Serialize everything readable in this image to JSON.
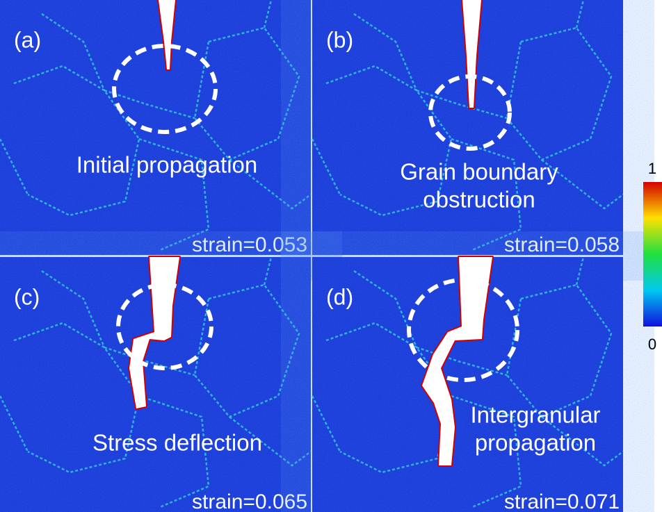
{
  "panels": [
    {
      "label": "(a)",
      "caption": [
        "Initial propagation"
      ],
      "strain": "strain=0.053"
    },
    {
      "label": "(b)",
      "caption": [
        "Grain boundary",
        "obstruction"
      ],
      "strain": "strain=0.058"
    },
    {
      "label": "(c)",
      "caption": [
        "Stress deflection"
      ],
      "strain": "strain=0.065"
    },
    {
      "label": "(d)",
      "caption": [
        "Intergranular",
        "propagation"
      ],
      "strain": "strain=0.071"
    }
  ],
  "colorbar": {
    "max": "1",
    "min": "0"
  }
}
